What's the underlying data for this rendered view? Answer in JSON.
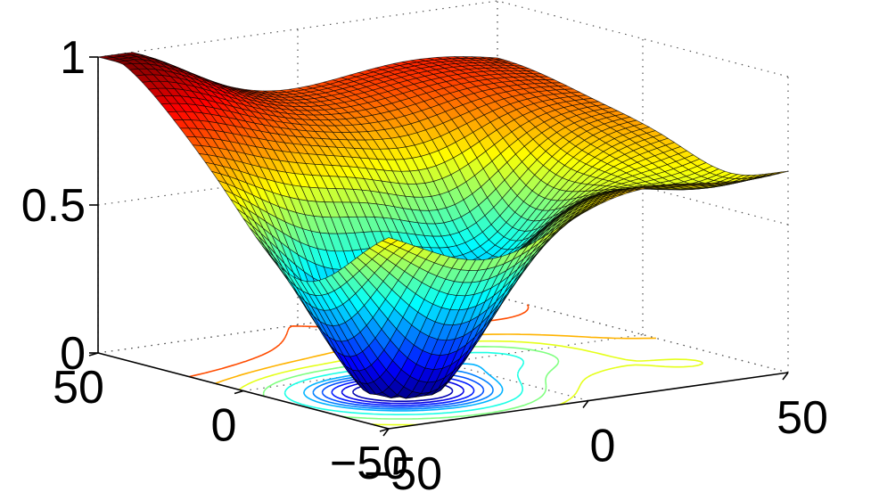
{
  "chart_data": {
    "type": "surface",
    "title": "",
    "xlabel": "",
    "ylabel": "",
    "zlabel": "",
    "xlim": [
      -50,
      50
    ],
    "ylim": [
      -50,
      50
    ],
    "zlim": [
      0,
      1
    ],
    "grid": true,
    "colormap": "jet",
    "contour_levels": [
      0.05,
      0.1,
      0.15,
      0.2,
      0.25,
      0.3,
      0.4,
      0.5,
      0.6,
      0.7,
      0.8
    ],
    "x_ticks": [
      "−50",
      "0",
      "50"
    ],
    "y_ticks": [
      "−50",
      "0",
      "50"
    ],
    "z_ticks": [
      "0",
      "0.5",
      "1"
    ],
    "surface_shape": {
      "baseline": 0.72,
      "corner_bumps": [
        {
          "x": -50,
          "y": 50,
          "height": 0.3,
          "spread": 22
        },
        {
          "x": 30,
          "y": 50,
          "height": 0.12,
          "spread": 25
        }
      ],
      "wells": [
        {
          "x": -25,
          "y": -20,
          "depth": 0.78,
          "spread": 18
        },
        {
          "x": 10,
          "y": 0,
          "depth": 0.32,
          "spread": 14
        },
        {
          "x": 40,
          "y": -30,
          "depth": 0.12,
          "spread": 15
        }
      ]
    }
  }
}
